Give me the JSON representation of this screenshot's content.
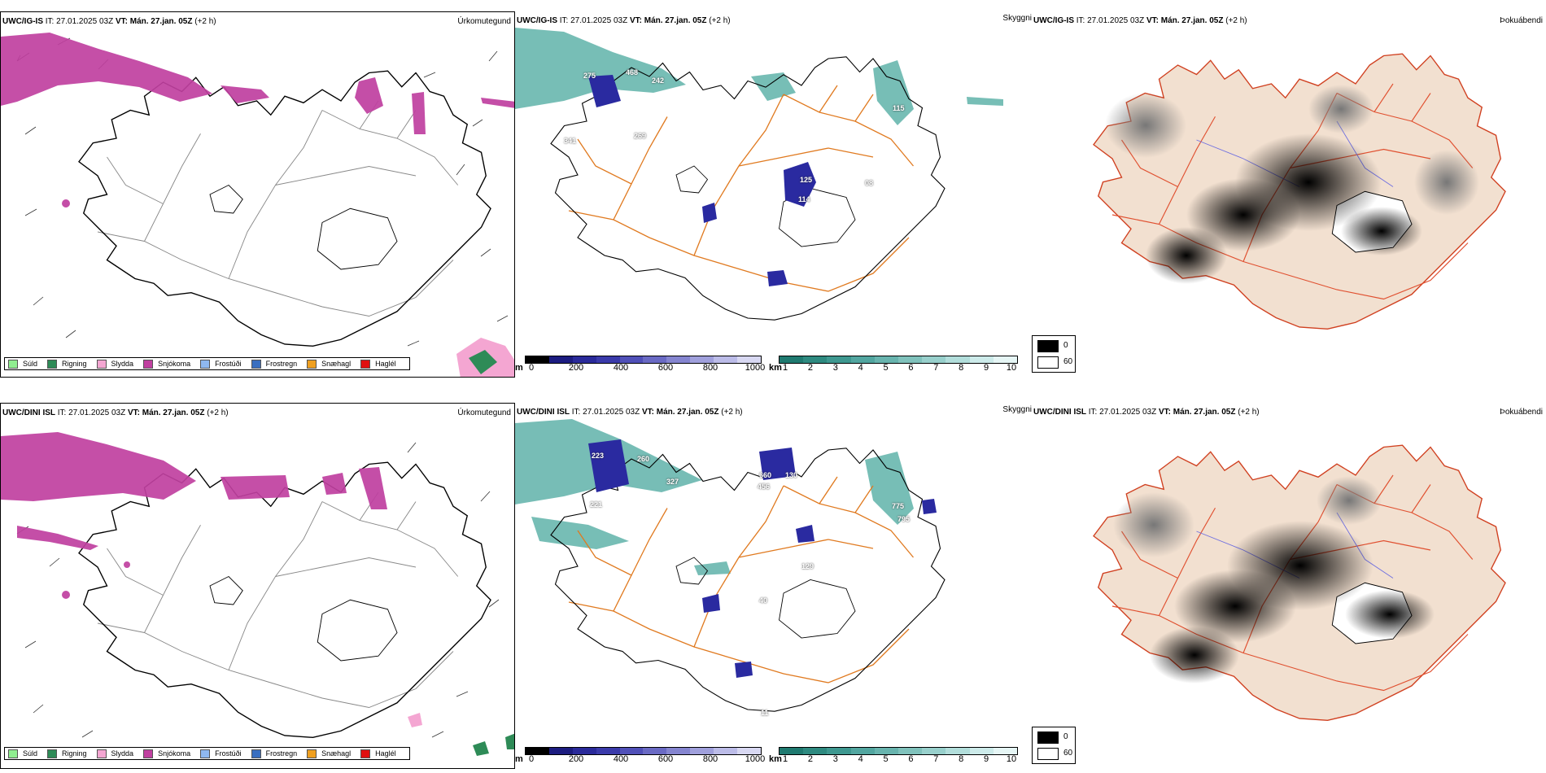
{
  "rows": [
    {
      "model": "UWC/IG-IS",
      "it_label": "IT:",
      "it_value": "27.01.2025 03Z",
      "vt_label": "VT:",
      "vt_value": "Mán. 27.jan. 05Z",
      "lead": "(+2 h)",
      "precip_title": "Úrkomutegund",
      "ceiling_title": "Skyggni",
      "cloud_title": "Þokuábendi",
      "height_labels": [
        "275",
        "468",
        "242",
        "341",
        "269",
        "125",
        "114",
        "08",
        "115"
      ]
    },
    {
      "model": "UWC/DINI ISL",
      "it_label": "IT:",
      "it_value": "27.01.2025 03Z",
      "vt_label": "VT:",
      "vt_value": "Mán. 27.jan. 05Z",
      "lead": "(+2 h)",
      "precip_title": "Úrkomutegund",
      "ceiling_title": "Skyggni",
      "cloud_title": "Þokuábendi",
      "height_labels": [
        "223",
        "260",
        "221",
        "327",
        "660",
        "130",
        "456",
        "129",
        "775",
        "795",
        "40",
        "11"
      ]
    }
  ],
  "precip_legend": [
    {
      "label": "Súld",
      "color": "#90ee90"
    },
    {
      "label": "Rigning",
      "color": "#2e8b57"
    },
    {
      "label": "Slydda",
      "color": "#f4a6d2"
    },
    {
      "label": "Snjókoma",
      "color": "#c040a0"
    },
    {
      "label": "Frostúði",
      "color": "#8fb8f0"
    },
    {
      "label": "Frostregn",
      "color": "#3a6fc0"
    },
    {
      "label": "Snæhagl",
      "color": "#f0a020"
    },
    {
      "label": "Haglél",
      "color": "#e01010"
    }
  ],
  "ceiling_bar": {
    "unit": "m",
    "ticks": [
      "0",
      "200",
      "400",
      "600",
      "800",
      "1000"
    ],
    "colors": [
      "#000000",
      "#1c1c80",
      "#2a2a9a",
      "#3a3aaa",
      "#5050b8",
      "#6a6ac4",
      "#8585d0",
      "#a0a0dc",
      "#bcbce8",
      "#d8d8f2"
    ]
  },
  "visibility_bar": {
    "unit": "km",
    "ticks": [
      "1",
      "2",
      "3",
      "4",
      "5",
      "6",
      "7",
      "8",
      "9",
      "10"
    ],
    "colors": [
      "#1f7a70",
      "#2e8a80",
      "#3e9890",
      "#52a6a0",
      "#68b4ae",
      "#80c2bc",
      "#98d0cc",
      "#b2dedb",
      "#cdebea",
      "#e6f6f5"
    ]
  },
  "cloud_legend": [
    {
      "value": "0",
      "color": "#000000"
    },
    {
      "value": "60",
      "color": "#ffffff"
    }
  ],
  "colors": {
    "snow": "#c040a0",
    "fog": "#4aa89e",
    "low_ceiling": "#2a2aa0",
    "roads": "#e07a20",
    "land": "#f2e0d0",
    "coast": "#000000"
  }
}
